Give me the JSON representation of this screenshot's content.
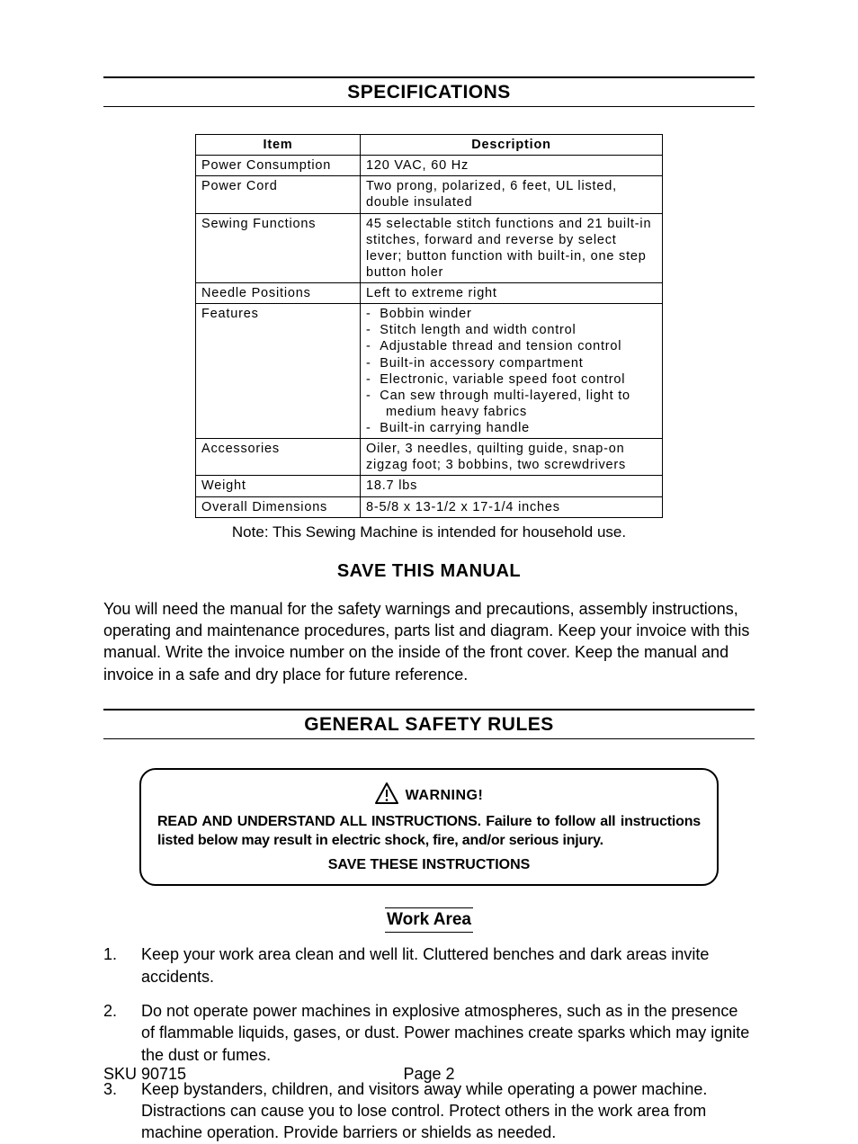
{
  "headings": {
    "specifications": "SPECIFICATIONS",
    "save_manual": "SAVE THIS MANUAL",
    "general_safety": "GENERAL SAFETY RULES",
    "work_area": "Work Area"
  },
  "spec_table": {
    "head_item": "Item",
    "head_desc": "Description",
    "rows": [
      {
        "item": "Power Consumption",
        "desc": "120 VAC, 60 Hz"
      },
      {
        "item": "Power Cord",
        "desc": "Two prong, polarized, 6 feet, UL listed, double insulated"
      },
      {
        "item": "Sewing Functions",
        "desc": "45 selectable stitch functions and 21 built-in stitches, forward and reverse by select lever; button function with built-in, one step button holer"
      },
      {
        "item": "Needle Positions",
        "desc": "Left to extreme right"
      },
      {
        "item": "Features",
        "features": [
          "Bobbin winder",
          "Stitch length and width control",
          "Adjustable thread and tension control",
          "Built-in accessory compartment",
          "Electronic, variable speed foot control",
          "Can sew through multi-layered, light to",
          "medium heavy fabrics",
          "Built-in carrying handle"
        ],
        "indent_indexes": [
          6
        ]
      },
      {
        "item": "Accessories",
        "desc": "Oiler, 3 needles, quilting guide, snap-on zigzag foot; 3 bobbins, two screwdrivers"
      },
      {
        "item": "Weight",
        "desc": "18.7 lbs"
      },
      {
        "item": "Overall Dimensions",
        "desc": "8-5/8 x 13-1/2 x 17-1/4 inches"
      }
    ],
    "note": "Note: This Sewing Machine is intended for household use."
  },
  "save_manual_text": "You will need the manual for the safety warnings and precautions, assembly instructions, operating and maintenance procedures, parts list and diagram.  Keep your invoice with this manual.  Write the invoice number on the inside of the front cover.  Keep the manual and invoice in a safe and dry place for future reference.",
  "warning": {
    "label": "WARNING!",
    "text": "READ AND UNDERSTAND ALL INSTRUCTIONS. Failure to follow  all instructions listed below may result in electric shock, fire, and/or serious injury.",
    "save": "SAVE THESE INSTRUCTIONS"
  },
  "work_area_items": [
    "Keep your work area clean and well lit.  Cluttered benches and dark areas invite accidents.",
    "Do not operate power machines in explosive atmospheres, such as in the presence of flammable liquids, gases, or dust.  Power machines create sparks which may ignite the dust or fumes.",
    "Keep bystanders, children, and visitors away while operating a power machine.  Distractions can cause you to lose control.  Protect others in the work area from machine operation.  Provide barriers or shields as needed."
  ],
  "footer": {
    "sku": "SKU 90715",
    "page": "Page 2"
  },
  "colors": {
    "text": "#000000",
    "background": "#ffffff",
    "border": "#000000"
  },
  "typography": {
    "section_title_fontsize": 21,
    "body_fontsize": 18,
    "table_fontsize": 14.5,
    "warning_fontsize": 16
  }
}
